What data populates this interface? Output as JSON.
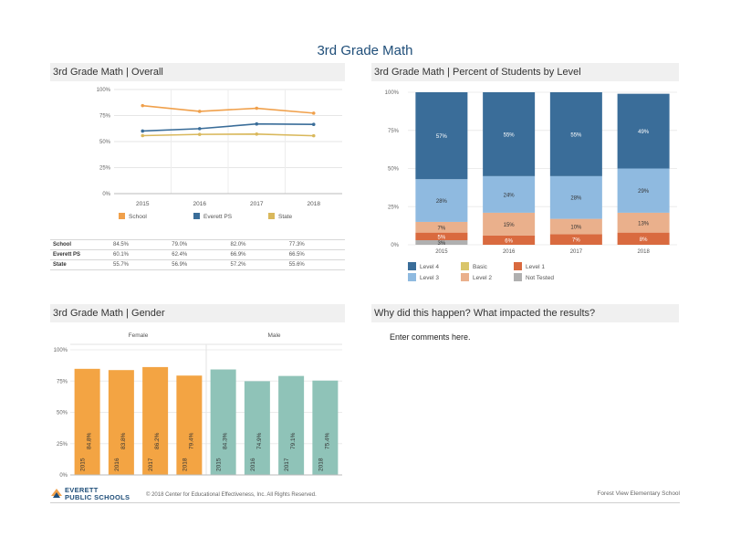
{
  "page": {
    "title": "3rd Grade Math"
  },
  "panels": {
    "overall": "3rd Grade Math | Overall",
    "levels": "3rd Grade Math | Percent of Students by Level",
    "gender": "3rd Grade Math | Gender",
    "why": "Why did this happen? What impacted the results?"
  },
  "comment": "Enter comments here.",
  "footer": {
    "logo_line1": "EVERETT",
    "logo_line2": "PUBLIC SCHOOLS",
    "copyright": "© 2018 Center for Educational Effectiveness, Inc. All Rights Reserved.",
    "school": "Forest View Elementary School"
  },
  "colors": {
    "school": "#f0a04b",
    "everett": "#3a6d99",
    "state": "#d9b85c",
    "female": "#f3a443",
    "male": "#8fc3b8"
  },
  "overall_table": {
    "rows": [
      {
        "label": "School",
        "values": [
          "84.5%",
          "79.0%",
          "82.0%",
          "77.3%"
        ]
      },
      {
        "label": "Everett PS",
        "values": [
          "60.1%",
          "62.4%",
          "66.9%",
          "66.5%"
        ]
      },
      {
        "label": "State",
        "values": [
          "55.7%",
          "56.9%",
          "57.2%",
          "55.6%"
        ]
      }
    ]
  },
  "chart_data": [
    {
      "type": "line",
      "title": "3rd Grade Math | Overall",
      "categories": [
        "2015",
        "2016",
        "2017",
        "2018"
      ],
      "yticks": [
        "100%",
        "75%",
        "50%",
        "25%",
        "0%"
      ],
      "ylim": [
        0,
        100
      ],
      "series": [
        {
          "name": "School",
          "values": [
            84.5,
            79.0,
            82.0,
            77.3
          ],
          "color": "#f0a04b"
        },
        {
          "name": "Everett PS",
          "values": [
            60.1,
            62.4,
            66.9,
            66.5
          ],
          "color": "#3a6d99"
        },
        {
          "name": "State",
          "values": [
            55.7,
            56.9,
            57.2,
            55.6
          ],
          "color": "#d9b85c"
        }
      ],
      "legend": "bottom"
    },
    {
      "type": "bar",
      "stacked": true,
      "title": "3rd Grade Math | Percent of Students by Level",
      "categories": [
        "2015",
        "2016",
        "2017",
        "2018"
      ],
      "yticks": [
        "100%",
        "75%",
        "50%",
        "25%",
        "0%"
      ],
      "ylim": [
        0,
        100
      ],
      "series": [
        {
          "name": "Not Tested",
          "values": [
            3,
            0,
            0,
            0
          ],
          "labels": [
            "3%",
            "",
            "",
            ""
          ],
          "color": "#b0b0b0"
        },
        {
          "name": "Level 1",
          "values": [
            5,
            6,
            7,
            8
          ],
          "labels": [
            "5%",
            "6%",
            "7%",
            "8%"
          ],
          "color": "#d96a3f"
        },
        {
          "name": "Level 2",
          "values": [
            7,
            15,
            10,
            13
          ],
          "labels": [
            "7%",
            "15%",
            "10%",
            "13%"
          ],
          "color": "#eab08c"
        },
        {
          "name": "Level 3",
          "values": [
            28,
            24,
            28,
            29
          ],
          "labels": [
            "28%",
            "24%",
            "28%",
            "29%"
          ],
          "color": "#8fbae0"
        },
        {
          "name": "Level 4",
          "values": [
            57,
            55,
            55,
            49
          ],
          "labels": [
            "57%",
            "55%",
            "55%",
            "49%"
          ],
          "color": "#3a6d99"
        },
        {
          "name": "Basic",
          "values": [
            0,
            0,
            0,
            0
          ],
          "labels": [
            "",
            "",
            "",
            ""
          ],
          "color": "#d9c56a"
        }
      ],
      "legend": "bottom"
    },
    {
      "type": "bar",
      "title": "3rd Grade Math | Gender",
      "groups": [
        "Female",
        "Male"
      ],
      "categories": [
        "2015",
        "2016",
        "2017",
        "2018"
      ],
      "yticks": [
        "100%",
        "75%",
        "50%",
        "25%",
        "0%"
      ],
      "ylim": [
        0,
        100
      ],
      "series": [
        {
          "name": "Female",
          "values": [
            84.8,
            83.8,
            86.2,
            79.4
          ],
          "labels": [
            "84.8%",
            "83.8%",
            "86.2%",
            "79.4%"
          ],
          "color": "#f3a443"
        },
        {
          "name": "Male",
          "values": [
            84.3,
            74.9,
            79.1,
            75.4
          ],
          "labels": [
            "84.3%",
            "74.9%",
            "79.1%",
            "75.4%"
          ],
          "color": "#8fc3b8"
        }
      ]
    }
  ]
}
